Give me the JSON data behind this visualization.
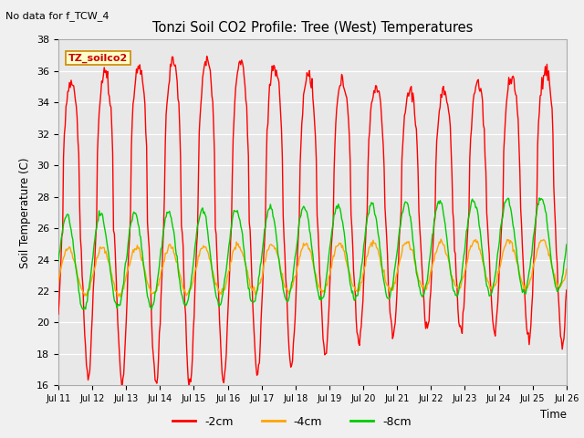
{
  "title": "Tonzi Soil CO2 Profile: Tree (West) Temperatures",
  "no_data_label": "No data for f_TCW_4",
  "ylabel": "Soil Temperature (C)",
  "xlabel": "Time",
  "ylim": [
    16,
    38
  ],
  "xlim": [
    0,
    15
  ],
  "plot_bg": "#e8e8e8",
  "fig_bg": "#f0f0f0",
  "grid_color": "white",
  "sensor_label": "TZ_soilco2",
  "sensor_box_bg": "#ffffcc",
  "sensor_box_edge": "#cc8800",
  "sensor_text_color": "#cc0000",
  "x_ticks": [
    0,
    1,
    2,
    3,
    4,
    5,
    6,
    7,
    8,
    9,
    10,
    11,
    12,
    13,
    14,
    15
  ],
  "x_tick_labels": [
    "Jul 11",
    "Jul 12",
    "Jul 13",
    "Jul 14",
    "Jul 15",
    "Jul 16",
    "Jul 17",
    "Jul 18",
    "Jul 19",
    "Jul 20",
    "Jul 21",
    "Jul 22",
    "Jul 23",
    "Jul 24",
    "Jul 25",
    "Jul 26"
  ],
  "y_ticks": [
    16,
    18,
    20,
    22,
    24,
    26,
    28,
    30,
    32,
    34,
    36,
    38
  ],
  "col_2cm": "#ff0000",
  "col_4cm": "#ffa500",
  "col_8cm": "#00cc00",
  "lbl_2cm": "-2cm",
  "lbl_4cm": "-4cm",
  "lbl_8cm": "-8cm",
  "lw": 1.0,
  "n_points": 600
}
